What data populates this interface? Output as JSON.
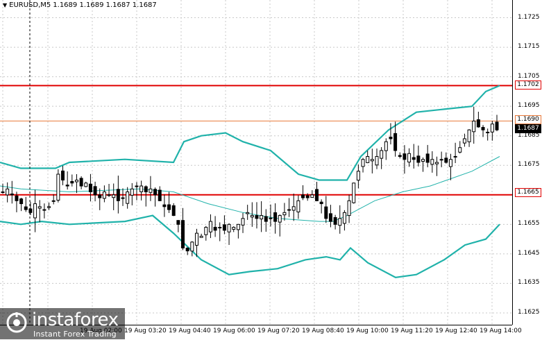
{
  "header": {
    "symbol": "EURUSD,M5",
    "ohlc": "1.1689 1.1689 1.1687 1.1687"
  },
  "price_axis": {
    "ticks": [
      "1.1725",
      "1.1715",
      "1.1705",
      "1.1695",
      "1.1685",
      "1.1675",
      "1.1665",
      "1.1655",
      "1.1645",
      "1.1635",
      "1.1625"
    ],
    "tags": {
      "resistance": "1.1702",
      "pivot": "1.1690",
      "current": "1.1687",
      "support": "1.1665"
    }
  },
  "time_axis": {
    "labels": [
      "19 Aug 02:00",
      "19 Aug 03:20",
      "19 Aug 04:40",
      "19 Aug 06:00",
      "19 Aug 07:20",
      "19 Aug 08:40",
      "19 Aug 10:00",
      "19 Aug 11:20",
      "19 Aug 12:40",
      "19 Aug 14:00"
    ]
  },
  "colors": {
    "level_red": "#e00000",
    "level_orange": "#e8793a",
    "bollinger": "#20b2aa",
    "grid": "#c8c8c8",
    "candle": "#000000"
  },
  "watermark": {
    "brand": "instaforex",
    "tagline": "Instant Forex Trading"
  },
  "chart_data": {
    "type": "candlestick",
    "symbol": "EURUSD",
    "timeframe": "M5",
    "ylim": [
      1.1621,
      1.1731
    ],
    "horizontal_levels": [
      {
        "price": 1.1702,
        "color": "red"
      },
      {
        "price": 1.169,
        "color": "orange"
      },
      {
        "price": 1.1665,
        "color": "red"
      }
    ],
    "close_path": [
      1.1666,
      1.1667,
      1.1665,
      1.1663,
      1.1662,
      1.166,
      1.1659,
      1.1662,
      1.1661,
      1.166,
      1.1661,
      1.1663,
      1.1672,
      1.167,
      1.1668,
      1.1669,
      1.167,
      1.1668,
      1.1669,
      1.1666,
      1.1665,
      1.1664,
      1.1666,
      1.1665,
      1.1665,
      1.1663,
      1.1664,
      1.1666,
      1.1667,
      1.1668,
      1.1668,
      1.1666,
      1.1667,
      1.1665,
      1.1663,
      1.1661,
      1.166,
      1.1658,
      1.1655,
      1.1647,
      1.1646,
      1.1649,
      1.1652,
      1.1651,
      1.1654,
      1.1656,
      1.1653,
      1.1654,
      1.1653,
      1.1655,
      1.1654,
      1.1655,
      1.1657,
      1.1659,
      1.1658,
      1.1657,
      1.1658,
      1.1656,
      1.1657,
      1.1656,
      1.1658,
      1.1659,
      1.166,
      1.1661,
      1.1663,
      1.1664,
      1.1664,
      1.1665,
      1.1663,
      1.1662,
      1.1657,
      1.1656,
      1.1655,
      1.1657,
      1.1659,
      1.1663,
      1.1669,
      1.1673,
      1.1677,
      1.1678,
      1.1677,
      1.1678,
      1.168,
      1.1683,
      1.1684,
      1.168,
      1.1678,
      1.1677,
      1.1679,
      1.1677,
      1.1676,
      1.1677,
      1.1676,
      1.1677,
      1.1676,
      1.1677,
      1.1676,
      1.1677,
      1.1678,
      1.1681,
      1.1684,
      1.1687,
      1.169,
      1.1688,
      1.1687,
      1.1686,
      1.1689,
      1.1687
    ],
    "bollinger_upper": [
      [
        0,
        1.1676
      ],
      [
        30,
        1.1674
      ],
      [
        80,
        1.1674
      ],
      [
        100,
        1.1676
      ],
      [
        180,
        1.1677
      ],
      [
        250,
        1.1676
      ],
      [
        265,
        1.1683
      ],
      [
        290,
        1.1685
      ],
      [
        325,
        1.1686
      ],
      [
        350,
        1.1683
      ],
      [
        390,
        1.168
      ],
      [
        430,
        1.1672
      ],
      [
        460,
        1.167
      ],
      [
        500,
        1.167
      ],
      [
        520,
        1.1678
      ],
      [
        560,
        1.1687
      ],
      [
        600,
        1.1693
      ],
      [
        640,
        1.1694
      ],
      [
        680,
        1.1695
      ],
      [
        700,
        1.17
      ],
      [
        720,
        1.1702
      ]
    ],
    "bollinger_middle": [
      [
        0,
        1.1668
      ],
      [
        30,
        1.1667
      ],
      [
        100,
        1.1666
      ],
      [
        200,
        1.1667
      ],
      [
        250,
        1.1666
      ],
      [
        300,
        1.1662
      ],
      [
        350,
        1.1659
      ],
      [
        400,
        1.1657
      ],
      [
        460,
        1.1656
      ],
      [
        480,
        1.1656
      ],
      [
        500,
        1.1658
      ],
      [
        540,
        1.1663
      ],
      [
        580,
        1.1666
      ],
      [
        620,
        1.1668
      ],
      [
        680,
        1.1673
      ],
      [
        720,
        1.1678
      ]
    ],
    "bollinger_lower": [
      [
        0,
        1.1656
      ],
      [
        30,
        1.1655
      ],
      [
        60,
        1.1656
      ],
      [
        100,
        1.1655
      ],
      [
        180,
        1.1656
      ],
      [
        220,
        1.1658
      ],
      [
        250,
        1.1652
      ],
      [
        290,
        1.1643
      ],
      [
        330,
        1.1638
      ],
      [
        360,
        1.1639
      ],
      [
        400,
        1.164
      ],
      [
        440,
        1.1643
      ],
      [
        470,
        1.1644
      ],
      [
        490,
        1.1643
      ],
      [
        505,
        1.1647
      ],
      [
        530,
        1.1642
      ],
      [
        570,
        1.1637
      ],
      [
        600,
        1.1638
      ],
      [
        640,
        1.1643
      ],
      [
        670,
        1.1648
      ],
      [
        700,
        1.165
      ],
      [
        720,
        1.1655
      ]
    ]
  }
}
